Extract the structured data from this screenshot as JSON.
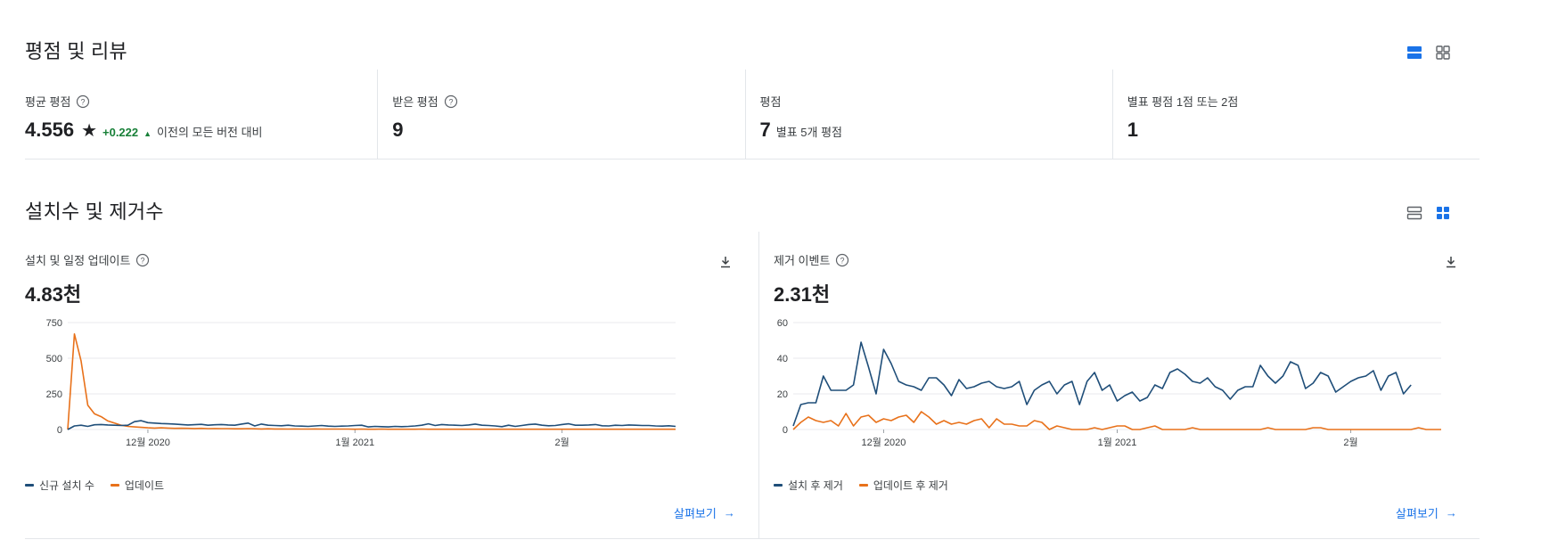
{
  "ratings": {
    "title": "평점 및 리뷰",
    "metrics": [
      {
        "label": "평균 평점",
        "has_help": true,
        "value": "4.556",
        "star": "★",
        "delta": "+0.222",
        "note": "이전의 모든 버전 대비"
      },
      {
        "label": "받은 평점",
        "has_help": true,
        "value": "9"
      },
      {
        "label": "평점",
        "has_help": false,
        "value": "7",
        "note": "별표 5개 평점"
      },
      {
        "label": "별표 평점 1점 또는 2점",
        "has_help": false,
        "value": "1"
      }
    ]
  },
  "installs": {
    "title": "설치수 및 제거수",
    "panels": [
      {
        "title": "설치 및 일정 업데이트",
        "value": "4.83천",
        "explore": "살펴보기"
      },
      {
        "title": "제거 이벤트",
        "value": "2.31천",
        "explore": "살펴보기"
      }
    ]
  },
  "colors": {
    "blue": "#1f4e79",
    "orange": "#e8711a",
    "accent": "#1a73e8",
    "green": "#188038"
  },
  "chart_data": [
    {
      "type": "line",
      "ylim": [
        0,
        750
      ],
      "yticks": [
        "0",
        "250",
        "500",
        "750"
      ],
      "xticks": [
        "12월 2020",
        "1월 2021",
        "2월"
      ],
      "xtick_positions": [
        12,
        43,
        74
      ],
      "series": [
        {
          "name": "신규 설치 수",
          "color": "#1f4e79",
          "values": [
            0,
            25,
            30,
            22,
            33,
            35,
            32,
            30,
            28,
            30,
            55,
            62,
            48,
            45,
            42,
            40,
            38,
            35,
            32,
            34,
            36,
            30,
            33,
            35,
            32,
            30,
            38,
            45,
            25,
            38,
            30,
            28,
            26,
            30,
            25,
            24,
            22,
            25,
            28,
            24,
            22,
            24,
            25,
            28,
            30,
            18,
            22,
            20,
            18,
            22,
            20,
            22,
            25,
            30,
            40,
            28,
            35,
            32,
            30,
            28,
            32,
            38,
            30,
            28,
            25,
            20,
            30,
            22,
            28,
            35,
            38,
            30,
            26,
            28,
            35,
            40,
            30,
            30,
            32,
            35,
            26,
            25,
            30,
            28,
            32,
            30,
            28,
            28,
            25,
            24,
            26,
            22
          ]
        },
        {
          "name": "업데이트",
          "color": "#e8711a",
          "values": [
            0,
            670,
            480,
            170,
            110,
            90,
            60,
            45,
            30,
            22,
            18,
            15,
            12,
            10,
            12,
            10,
            8,
            9,
            8,
            7,
            8,
            6,
            7,
            6,
            6,
            5,
            5,
            6,
            5,
            4,
            5,
            4,
            4,
            3,
            4,
            3,
            3,
            4,
            3,
            3,
            3,
            3,
            3,
            2,
            3,
            2,
            2,
            3,
            2,
            2,
            2,
            2,
            2,
            3,
            2,
            2,
            2,
            2,
            2,
            2,
            2,
            2,
            2,
            2,
            2,
            2,
            2,
            2,
            2,
            2,
            2,
            2,
            2,
            2,
            2,
            2,
            2,
            2,
            2,
            2,
            2,
            2,
            2,
            2,
            2,
            2,
            2,
            2,
            2,
            2,
            2,
            2
          ]
        }
      ]
    },
    {
      "type": "line",
      "ylim": [
        0,
        60
      ],
      "yticks": [
        "0",
        "20",
        "40",
        "60"
      ],
      "xticks": [
        "12월 2020",
        "1월 2021",
        "2월"
      ],
      "xtick_positions": [
        12,
        43,
        74
      ],
      "series": [
        {
          "name": "설치 후 제거",
          "color": "#1f4e79",
          "values": [
            2,
            14,
            15,
            15,
            30,
            22,
            22,
            22,
            25,
            49,
            35,
            20,
            45,
            37,
            27,
            25,
            24,
            22,
            29,
            29,
            25,
            19,
            28,
            23,
            24,
            26,
            27,
            24,
            23,
            24,
            27,
            14,
            22,
            25,
            27,
            20,
            25,
            27,
            14,
            27,
            32,
            22,
            25,
            16,
            19,
            21,
            16,
            18,
            25,
            23,
            32,
            34,
            31,
            27,
            26,
            29,
            24,
            22,
            17,
            22,
            24,
            24,
            36,
            30,
            26,
            30,
            38,
            36,
            23,
            26,
            32,
            30,
            21,
            24,
            27,
            29,
            30,
            33,
            22,
            30,
            32,
            20,
            25
          ]
        },
        {
          "name": "업데이트 후 제거",
          "color": "#e8711a",
          "values": [
            0,
            4,
            7,
            5,
            4,
            5,
            2,
            9,
            2,
            7,
            8,
            4,
            6,
            5,
            7,
            8,
            4,
            10,
            7,
            3,
            5,
            3,
            4,
            3,
            5,
            6,
            1,
            6,
            3,
            3,
            2,
            2,
            5,
            4,
            0,
            2,
            1,
            0,
            0,
            0,
            1,
            0,
            1,
            2,
            2,
            0,
            0,
            1,
            2,
            0,
            0,
            0,
            0,
            1,
            0,
            0,
            0,
            0,
            0,
            0,
            0,
            0,
            0,
            1,
            0,
            0,
            0,
            0,
            0,
            1,
            1,
            0,
            0,
            0,
            0,
            0,
            0,
            0,
            0,
            0,
            0,
            0,
            0,
            1,
            0,
            0,
            0
          ]
        }
      ]
    }
  ]
}
